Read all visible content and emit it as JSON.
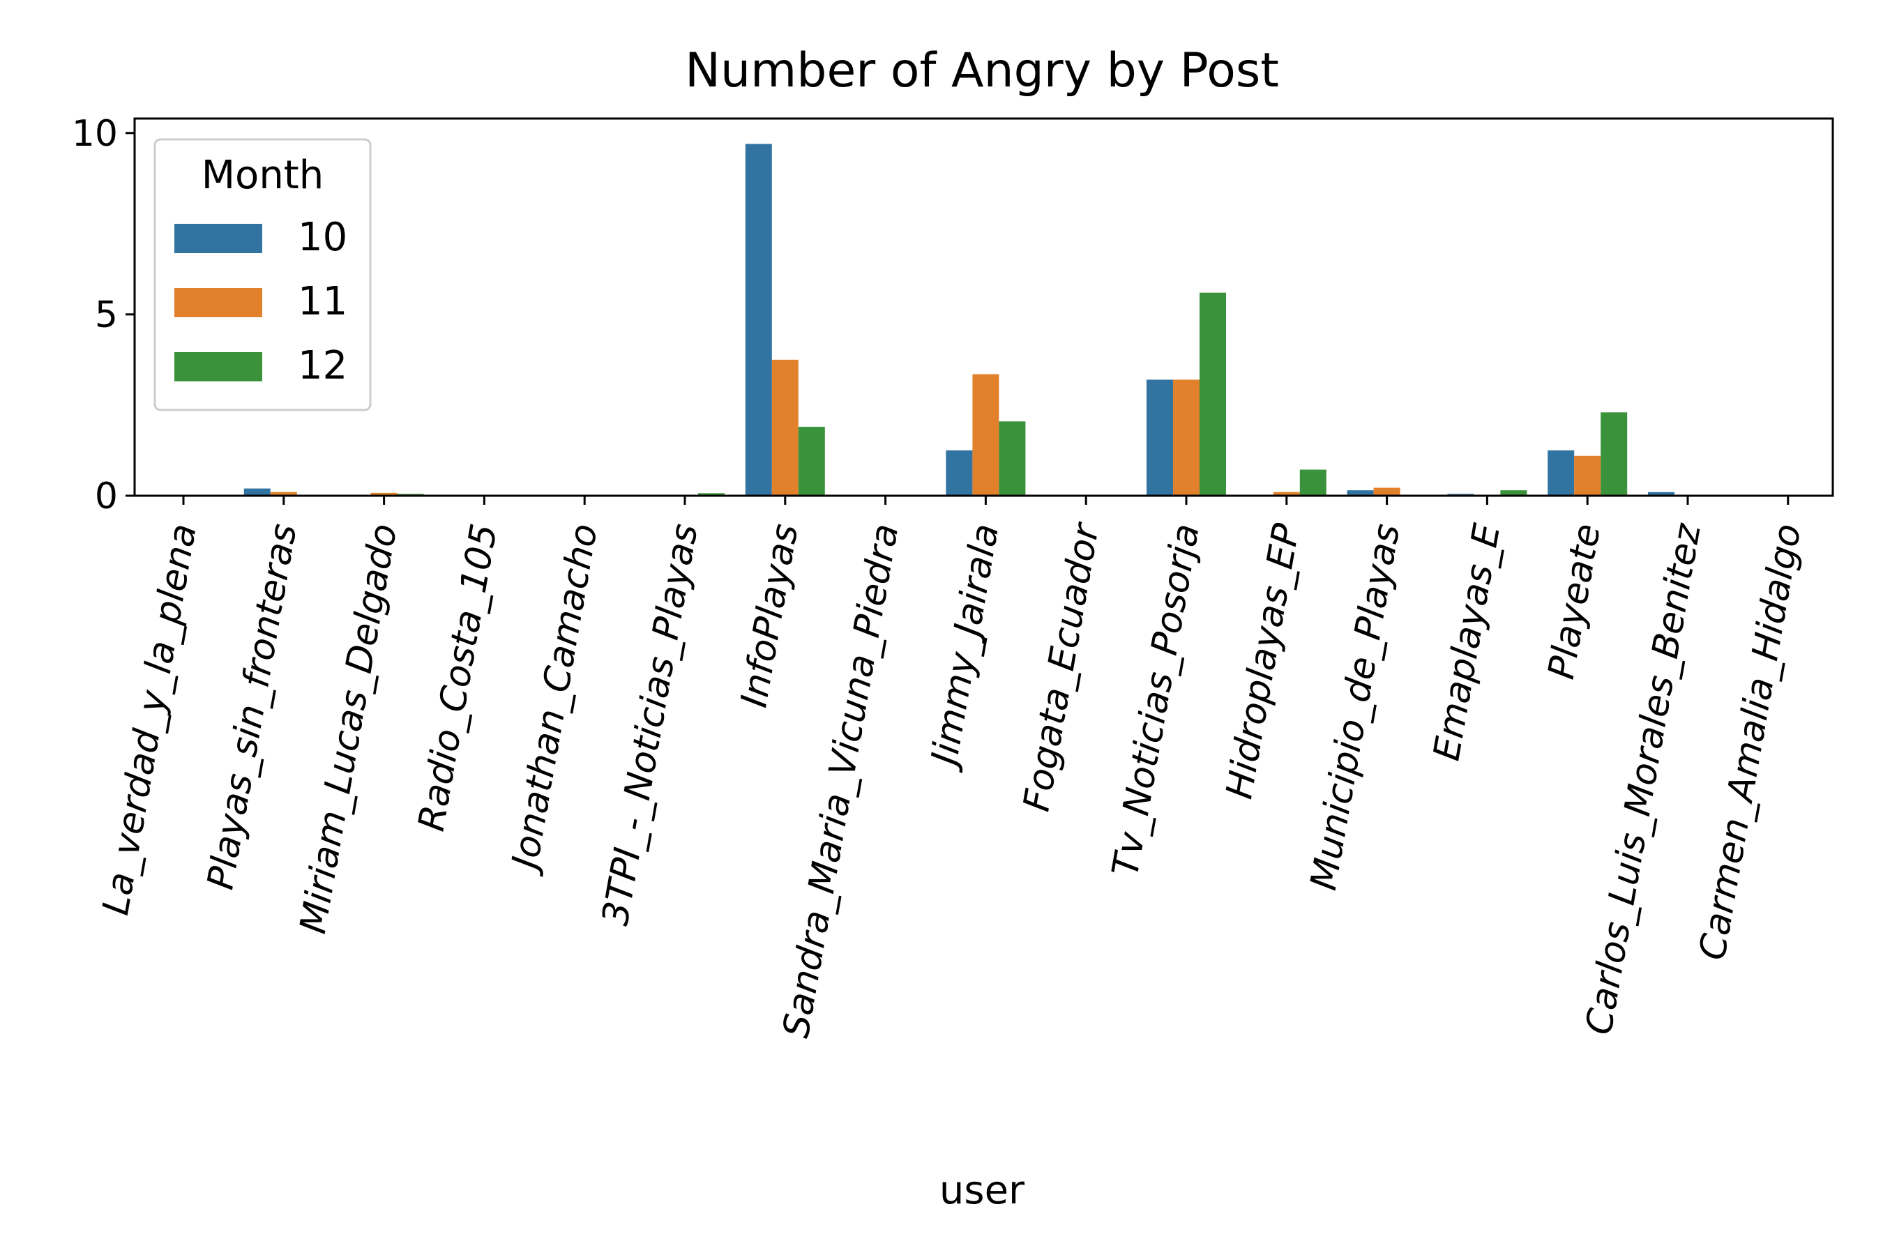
{
  "chart_data": {
    "type": "bar",
    "title": "Number of Angry by Post",
    "xlabel": "user",
    "ylabel": "",
    "ylim": [
      0,
      10.4
    ],
    "yticks": [
      0,
      5,
      10
    ],
    "grid": false,
    "legend": {
      "title": "Month",
      "placement": "top-left"
    },
    "categories": [
      "La_verdad_y_la_plena",
      "Playas_sin_fronteras",
      "Miriam_Lucas_Delgado",
      "Radio_Costa_105",
      "Jonathan_Camacho",
      "3TPI_-_Noticias_Playas",
      "InfoPlayas",
      "Sandra_Maria_Vicuna_Piedra",
      "Jimmy_Jairala",
      "Fogata_Ecuador",
      "Tv_Noticias_Posorja",
      "Hidroplayas_EP",
      "Municipio_de_Playas",
      "Emaplayas_E",
      "Playeate",
      "Carlos_Luis_Morales_Benitez",
      "Carmen_Amalia_Hidalgo"
    ],
    "series": [
      {
        "name": "10",
        "color": "#3274a1",
        "values": [
          0,
          0.2,
          0,
          0,
          0,
          0,
          9.7,
          0,
          1.25,
          0,
          3.2,
          0,
          0.15,
          0.05,
          1.25,
          0.1,
          0
        ]
      },
      {
        "name": "11",
        "color": "#e1812c",
        "values": [
          0,
          0.1,
          0.08,
          0,
          0,
          0,
          3.75,
          0,
          3.35,
          0,
          3.2,
          0.1,
          0.22,
          0,
          1.1,
          0,
          0
        ]
      },
      {
        "name": "12",
        "color": "#3a923a",
        "values": [
          0,
          0,
          0.05,
          0,
          0,
          0.07,
          1.9,
          0,
          2.05,
          0,
          5.6,
          0.72,
          0,
          0.15,
          2.3,
          0,
          0
        ]
      }
    ]
  }
}
